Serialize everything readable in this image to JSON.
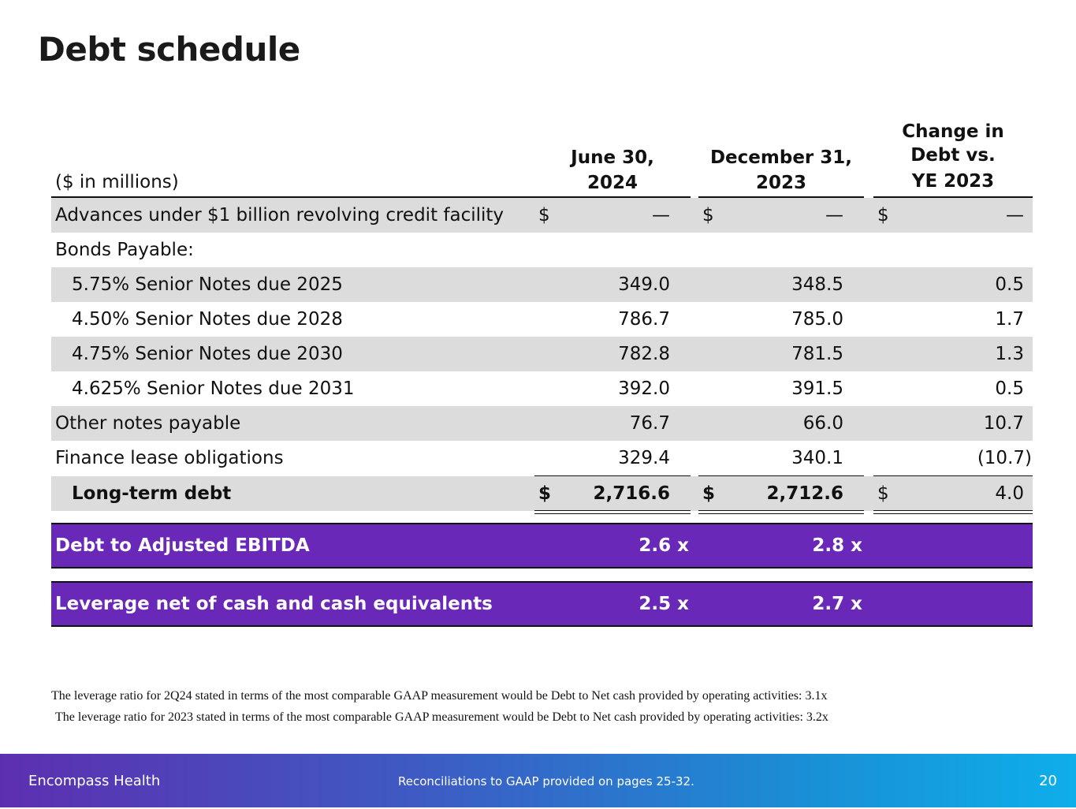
{
  "title": "Debt schedule",
  "header": {
    "label": "($ in millions)",
    "col1": [
      "June 30,",
      "2024"
    ],
    "col2": [
      "December 31,",
      "2023"
    ],
    "col3": [
      "Change in",
      "Debt vs.",
      "YE 2023"
    ]
  },
  "rows": [
    {
      "label": "Advances under $1 billion revolving credit facility",
      "dollar": "$",
      "v1": "—",
      "v2": "—",
      "v3": "—"
    },
    {
      "label": "Bonds Payable:",
      "v1": "",
      "v2": "",
      "v3": ""
    },
    {
      "label": "5.75% Senior Notes due 2025",
      "v1": "349.0",
      "v2": "348.5",
      "v3": "0.5"
    },
    {
      "label": "4.50% Senior Notes due 2028",
      "v1": "786.7",
      "v2": "785.0",
      "v3": "1.7"
    },
    {
      "label": "4.75% Senior Notes due 2030",
      "v1": "782.8",
      "v2": "781.5",
      "v3": "1.3"
    },
    {
      "label": "4.625% Senior Notes due 2031",
      "v1": "392.0",
      "v2": "391.5",
      "v3": "0.5"
    },
    {
      "label": "Other notes payable",
      "v1": "76.7",
      "v2": "66.0",
      "v3": "10.7"
    },
    {
      "label": "Finance lease obligations",
      "v1": "329.4",
      "v2": "340.1",
      "v3": "(10.7)"
    },
    {
      "label": "Long-term debt",
      "dollar": "$",
      "v1": "2,716.6",
      "v2": "2,712.6",
      "v3": "4.0"
    }
  ],
  "ratios": [
    {
      "label": "Debt to Adjusted EBITDA",
      "v1": "2.6 x",
      "v2": "2.8 x"
    },
    {
      "label": "Leverage net of cash and cash equivalents",
      "v1": "2.5 x",
      "v2": "2.7 x"
    }
  ],
  "notes": [
    "The leverage ratio for 2Q24 stated in terms of the most comparable GAAP measurement would be Debt to Net cash provided by operating activities:  3.1x",
    "The leverage ratio for 2023 stated in terms of the most comparable GAAP measurement would be Debt to Net cash provided by operating activities:  3.2x"
  ],
  "footer": {
    "brand": "Encompass Health",
    "note": "Reconciliations to GAAP provided on pages 25-32.",
    "page": "20"
  },
  "colors": {
    "purple": "#6a28b8",
    "shade": "#dcdcdc"
  }
}
